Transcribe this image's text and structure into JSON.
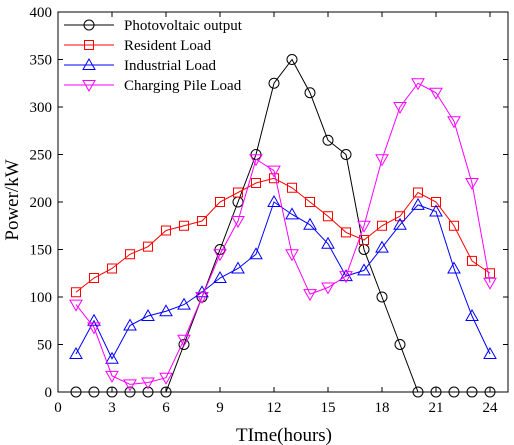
{
  "chart_data": {
    "type": "line",
    "title": "",
    "xlabel": "TIme(hours)",
    "ylabel": "Power/kW",
    "xlim": [
      0,
      25
    ],
    "ylim": [
      0,
      400
    ],
    "xticks": [
      0,
      3,
      6,
      9,
      12,
      15,
      18,
      21,
      24
    ],
    "yticks": [
      0,
      50,
      100,
      150,
      200,
      250,
      300,
      350,
      400
    ],
    "grid": false,
    "legend_position": "top-left",
    "x": [
      1,
      2,
      3,
      4,
      5,
      6,
      7,
      8,
      9,
      10,
      11,
      12,
      13,
      14,
      15,
      16,
      17,
      18,
      19,
      20,
      21,
      22,
      23,
      24
    ],
    "series": [
      {
        "name": "Photovoltaic output",
        "color": "#000000",
        "marker": "circle",
        "values": [
          0,
          0,
          0,
          0,
          0,
          0,
          50,
          100,
          150,
          200,
          250,
          325,
          350,
          315,
          265,
          250,
          150,
          100,
          50,
          0,
          0,
          0,
          0,
          0
        ]
      },
      {
        "name": "Resident Load",
        "color": "#ff0000",
        "marker": "square",
        "values": [
          105,
          120,
          130,
          145,
          153,
          170,
          175,
          180,
          200,
          210,
          220,
          225,
          215,
          200,
          185,
          168,
          160,
          175,
          185,
          210,
          200,
          175,
          138,
          125
        ]
      },
      {
        "name": "Industrial Load",
        "color": "#0000ff",
        "marker": "triangle-up",
        "values": [
          40,
          75,
          35,
          70,
          80,
          85,
          92,
          105,
          120,
          130,
          145,
          200,
          187,
          176,
          156,
          122,
          128,
          152,
          176,
          197,
          190,
          130,
          80,
          40
        ]
      },
      {
        "name": "Charging Pile Load",
        "color": "#ff00ff",
        "marker": "triangle-down",
        "values": [
          92,
          68,
          17,
          8,
          10,
          15,
          55,
          100,
          145,
          180,
          245,
          233,
          145,
          103,
          110,
          122,
          175,
          245,
          300,
          325,
          315,
          285,
          220,
          115
        ]
      }
    ]
  }
}
